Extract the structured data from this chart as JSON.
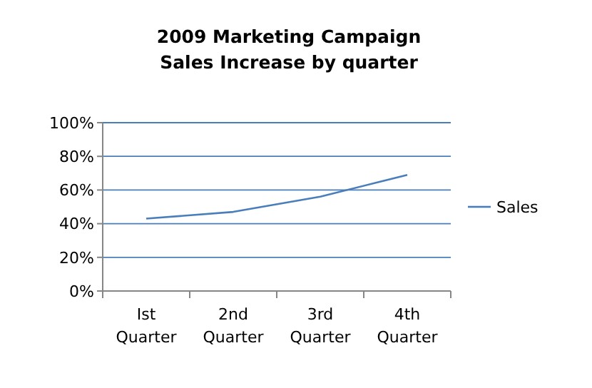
{
  "chart_data": {
    "type": "line",
    "title": "2009 Marketing Campaign\nSales Increase by quarter",
    "categories": [
      "Ist\nQuarter",
      "2nd\nQuarter",
      "3rd\nQuarter",
      "4th\nQuarter"
    ],
    "series": [
      {
        "name": "Sales",
        "color": "#4a7ebb",
        "values": [
          0.43,
          0.47,
          0.56,
          0.69
        ]
      }
    ],
    "ylim": [
      0,
      1
    ],
    "yticks": [
      {
        "value": 0,
        "label": "0%"
      },
      {
        "value": 0.2,
        "label": "20%"
      },
      {
        "value": 0.4,
        "label": "40%"
      },
      {
        "value": 0.6,
        "label": "60%"
      },
      {
        "value": 0.8,
        "label": "80%"
      },
      {
        "value": 1,
        "label": "100%"
      }
    ],
    "grid": "y",
    "legend": "right",
    "marker": "none",
    "line_style": "solid"
  }
}
